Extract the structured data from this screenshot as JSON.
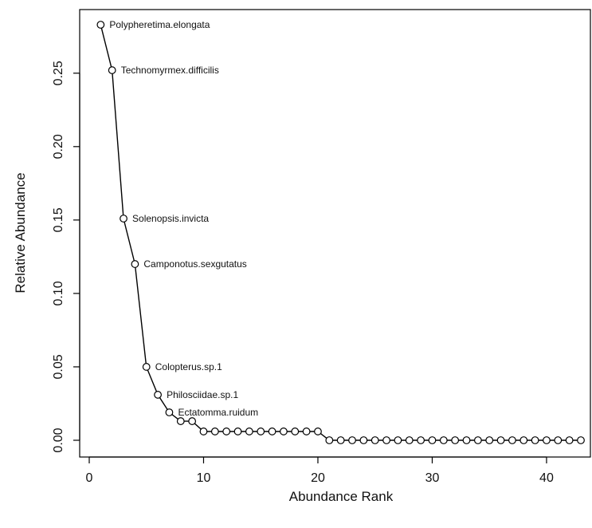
{
  "chart_data": {
    "type": "line",
    "title": "",
    "xlabel": "Abundance Rank",
    "ylabel": "Relative Abundance",
    "xlim": [
      0,
      43
    ],
    "ylim": [
      0,
      0.283
    ],
    "xticks": [
      0,
      10,
      20,
      30,
      40
    ],
    "xtick_labels": [
      "0",
      "10",
      "20",
      "30",
      "40"
    ],
    "yticks": [
      0.0,
      0.05,
      0.1,
      0.15,
      0.2,
      0.25
    ],
    "ytick_labels": [
      "0.00",
      "0.05",
      "0.10",
      "0.15",
      "0.20",
      "0.25"
    ],
    "grid": false,
    "legend": "none",
    "series": [
      {
        "x": [
          1,
          2,
          3,
          4,
          5,
          6,
          7,
          8,
          9,
          10,
          11,
          12,
          13,
          14,
          15,
          16,
          17,
          18,
          19,
          20,
          21,
          22,
          23,
          24,
          25,
          26,
          27,
          28,
          29,
          30,
          31,
          32,
          33,
          34,
          35,
          36,
          37,
          38,
          39,
          40,
          41,
          42,
          43
        ],
        "values": [
          0.283,
          0.252,
          0.151,
          0.12,
          0.05,
          0.031,
          0.019,
          0.013,
          0.013,
          0.006,
          0.006,
          0.006,
          0.006,
          0.006,
          0.006,
          0.006,
          0.006,
          0.006,
          0.006,
          0.006,
          0.0,
          0.0,
          0.0,
          0.0,
          0.0,
          0.0,
          0.0,
          0.0,
          0.0,
          0.0,
          0.0,
          0.0,
          0.0,
          0.0,
          0.0,
          0.0,
          0.0,
          0.0,
          0.0,
          0.0,
          0.0,
          0.0,
          0.0
        ]
      }
    ],
    "annotations": [
      {
        "x": 1,
        "y": 0.283,
        "text": "Polypheretima.elongata"
      },
      {
        "x": 2,
        "y": 0.252,
        "text": "Technomyrmex.difficilis"
      },
      {
        "x": 3,
        "y": 0.151,
        "text": "Solenopsis.invicta"
      },
      {
        "x": 4,
        "y": 0.12,
        "text": "Camponotus.sexgutatus"
      },
      {
        "x": 5,
        "y": 0.05,
        "text": "Colopterus.sp.1"
      },
      {
        "x": 6,
        "y": 0.031,
        "text": "Philosciidae.sp.1"
      },
      {
        "x": 7,
        "y": 0.019,
        "text": "Ectatomma.ruidum"
      }
    ]
  }
}
